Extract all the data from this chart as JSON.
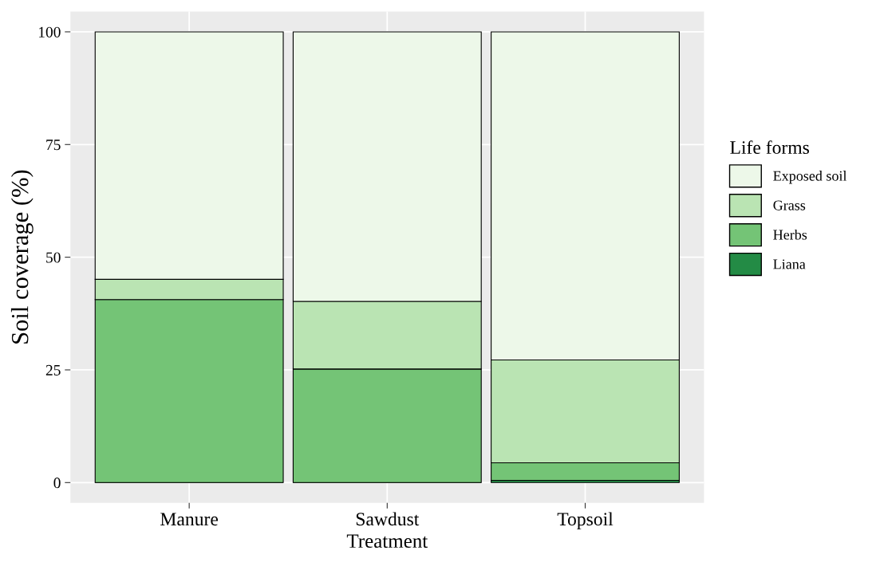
{
  "chart_data": {
    "type": "bar",
    "stacked": true,
    "xlabel": "Treatment",
    "ylabel": "Soil coverage (%)",
    "legend_title": "Life forms",
    "categories": [
      "Manure",
      "Sawdust",
      "Topsoil"
    ],
    "series": [
      {
        "name": "Liana",
        "color": "#238b45",
        "values": [
          0,
          0,
          0.5
        ]
      },
      {
        "name": "Herbs",
        "color": "#74c476",
        "values": [
          40.6,
          25.2,
          3.9
        ]
      },
      {
        "name": "Grass",
        "color": "#bae4b3",
        "values": [
          4.5,
          15,
          22.8
        ]
      },
      {
        "name": "Exposed soil",
        "color": "#edf8e9",
        "values": [
          54.9,
          59.8,
          72.8
        ]
      }
    ],
    "ylim": [
      -4.5,
      104.5
    ],
    "yticks": [
      0,
      25,
      50,
      75,
      100
    ],
    "grid": true,
    "legend": "right"
  }
}
